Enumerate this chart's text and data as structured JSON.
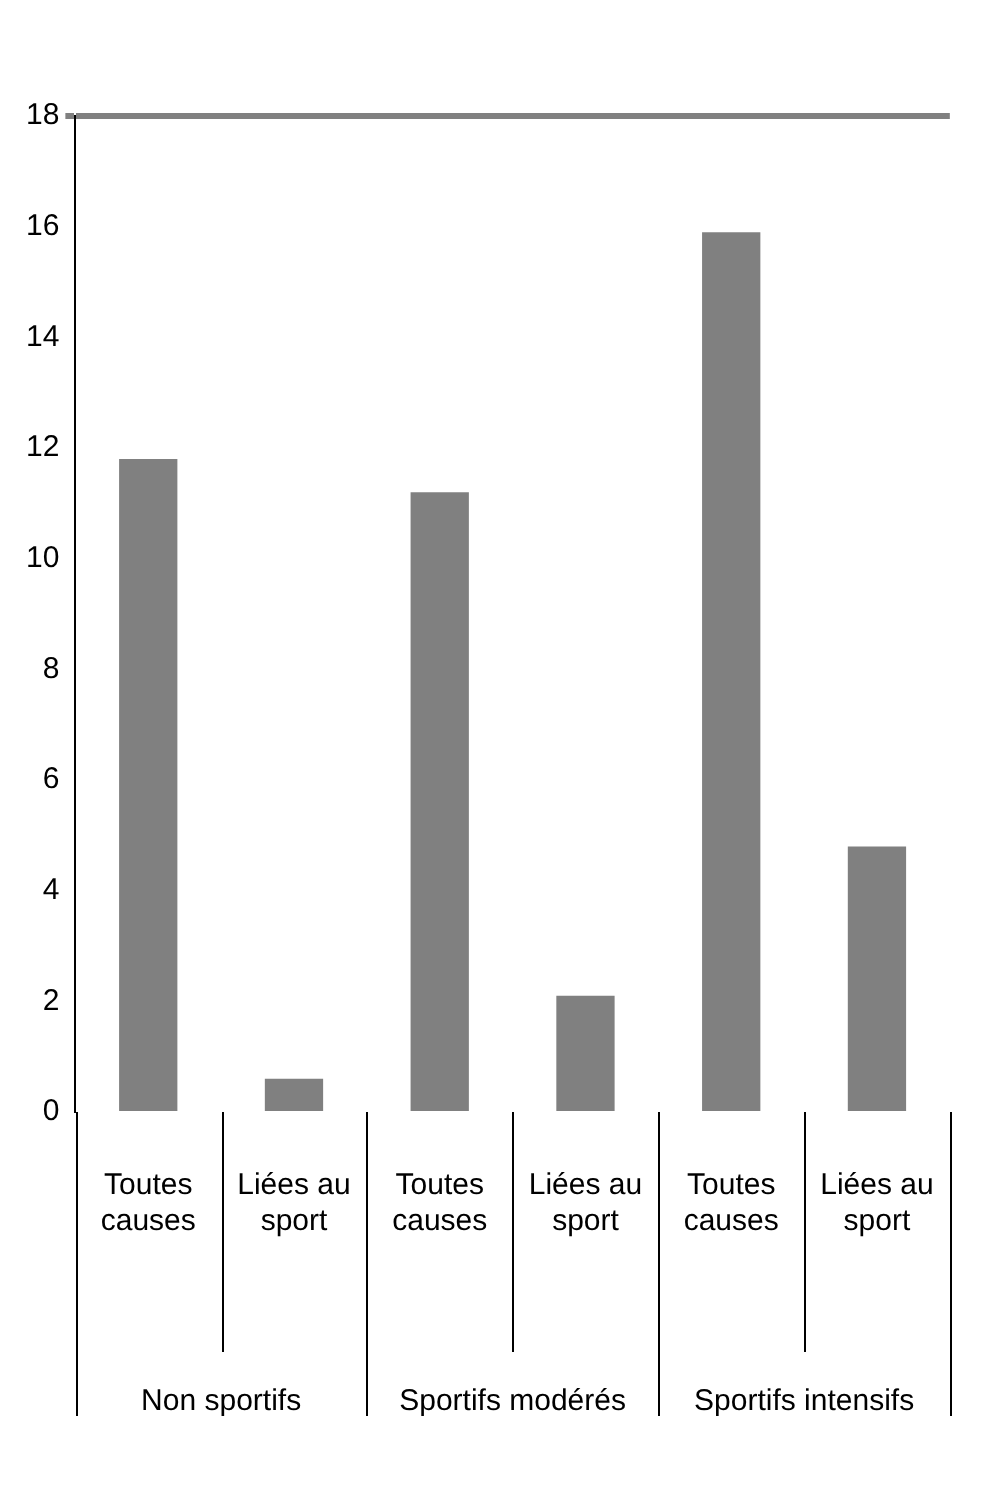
{
  "chart_data": {
    "type": "bar",
    "categories": [
      "Toutes causes",
      "Liées au sport",
      "Toutes causes",
      "Liées au sport",
      "Toutes causes",
      "Liées au sport"
    ],
    "values": [
      11.8,
      0.6,
      11.2,
      2.1,
      15.9,
      4.8
    ],
    "color": "#808080",
    "ylim": [
      0,
      18
    ],
    "yticks": [
      0,
      2,
      4,
      6,
      8,
      10,
      12,
      14,
      16,
      18
    ],
    "grid": false,
    "legend": false,
    "annotations": [
      "Non sportifs",
      "Sportifs modérés",
      "Sportifs intensifs"
    ]
  }
}
